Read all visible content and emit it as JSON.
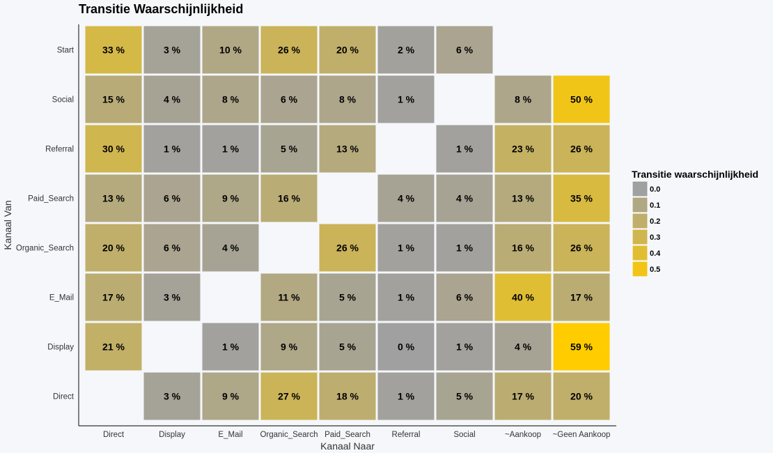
{
  "chart_data": {
    "type": "heatmap",
    "title": "Transitie Waarschijnlijkheid",
    "xlabel": "Kanaal Naar",
    "ylabel": "Kanaal Van",
    "x_categories": [
      "Direct",
      "Display",
      "E_Mail",
      "Organic_Search",
      "Paid_Search",
      "Referral",
      "Social",
      "~Aankoop",
      "~Geen Aankoop"
    ],
    "y_categories": [
      "Start",
      "Social",
      "Referral",
      "Paid_Search",
      "Organic_Search",
      "E_Mail",
      "Display",
      "Direct"
    ],
    "values": [
      [
        0.33,
        0.03,
        0.1,
        0.26,
        0.2,
        0.02,
        0.06,
        null,
        null
      ],
      [
        0.15,
        0.04,
        0.08,
        0.06,
        0.08,
        0.01,
        null,
        0.08,
        0.5
      ],
      [
        0.3,
        0.01,
        0.01,
        0.05,
        0.13,
        null,
        0.01,
        0.23,
        0.26
      ],
      [
        0.13,
        0.06,
        0.09,
        0.16,
        null,
        0.04,
        0.04,
        0.13,
        0.35
      ],
      [
        0.2,
        0.06,
        0.04,
        null,
        0.26,
        0.01,
        0.01,
        0.16,
        0.26
      ],
      [
        0.17,
        0.03,
        null,
        0.11,
        0.05,
        0.01,
        0.06,
        0.4,
        0.17
      ],
      [
        0.21,
        null,
        0.01,
        0.09,
        0.05,
        0.0,
        0.01,
        0.04,
        0.59
      ],
      [
        null,
        0.03,
        0.09,
        0.27,
        0.18,
        0.01,
        0.05,
        0.17,
        0.2
      ]
    ],
    "labels": [
      [
        "33 %",
        "3 %",
        "10 %",
        "26 %",
        "20 %",
        "2 %",
        "6 %",
        "",
        ""
      ],
      [
        "15 %",
        "4 %",
        "8 %",
        "6 %",
        "8 %",
        "1 %",
        "",
        "8 %",
        "50 %"
      ],
      [
        "30 %",
        "1 %",
        "1 %",
        "5 %",
        "13 %",
        "",
        "1 %",
        "23 %",
        "26 %"
      ],
      [
        "13 %",
        "6 %",
        "9 %",
        "16 %",
        "",
        "4 %",
        "4 %",
        "13 %",
        "35 %"
      ],
      [
        "20 %",
        "6 %",
        "4 %",
        "",
        "26 %",
        "1 %",
        "1 %",
        "16 %",
        "26 %"
      ],
      [
        "17 %",
        "3 %",
        "",
        "11 %",
        "5 %",
        "1 %",
        "6 %",
        "40 %",
        "17 %"
      ],
      [
        "21 %",
        "",
        "1 %",
        "9 %",
        "5 %",
        "0 %",
        "1 %",
        "4 %",
        "59 %"
      ],
      [
        "",
        "3 %",
        "9 %",
        "27 %",
        "18 %",
        "1 %",
        "5 %",
        "17 %",
        "20 %"
      ]
    ],
    "color_scale": {
      "low": "#a0a0a0",
      "high": "#ffcc00",
      "domain": [
        0,
        0.59
      ]
    },
    "legend": {
      "title": "Transitie waarschijnlijkheid",
      "placement": "right",
      "entries": [
        {
          "label": "0.0",
          "value": 0.0
        },
        {
          "label": "0.1",
          "value": 0.1
        },
        {
          "label": "0.2",
          "value": 0.2
        },
        {
          "label": "0.3",
          "value": 0.3
        },
        {
          "label": "0.4",
          "value": 0.4
        },
        {
          "label": "0.5",
          "value": 0.5
        }
      ]
    }
  }
}
